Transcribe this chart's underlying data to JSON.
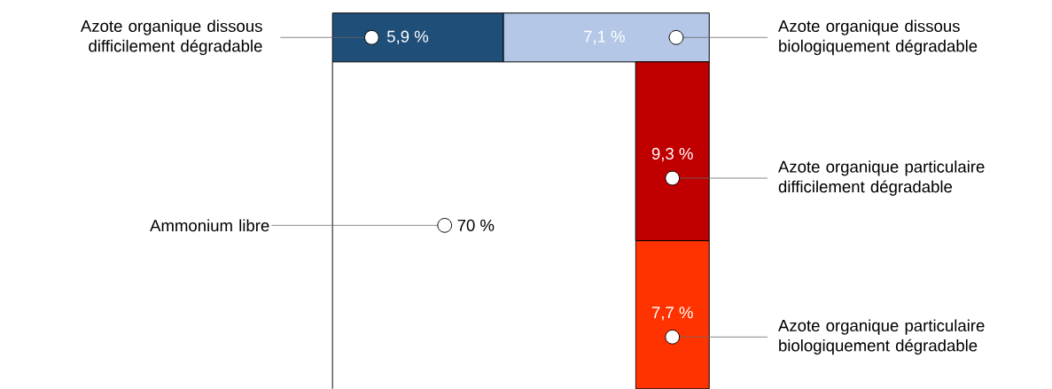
{
  "chart_data": {
    "type": "other",
    "categories": [
      "Ammonium libre",
      "Azote organique dissous difficilement dégradable",
      "Azote organique dissous biologiquement dégradable",
      "Azote organique particulaire difficilement dégradable",
      "Azote organique particulaire biologiquement dégradable"
    ],
    "values": [
      70,
      5.9,
      7.1,
      9.3,
      7.7
    ],
    "value_labels": [
      "70 %",
      "5,9 %",
      "7,1 %",
      "9,3 %",
      "7,7 %"
    ],
    "colors": [
      "#ffffff",
      "#1f4e79",
      "#b4c7e7",
      "#c00000",
      "#ff3300"
    ]
  }
}
